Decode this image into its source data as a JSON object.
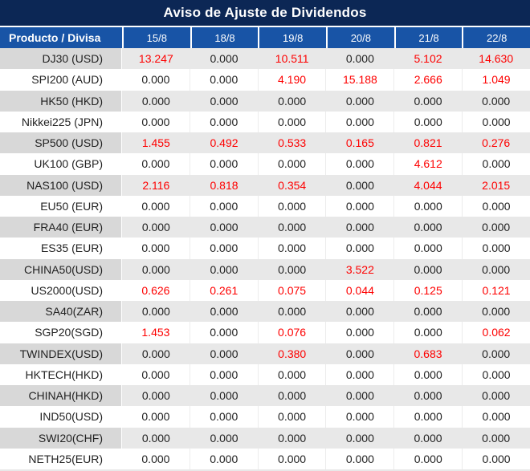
{
  "title": "Aviso de Ajuste de Dividendos",
  "colors": {
    "title_bar_navy": "#0c2755",
    "header_blue": "#1854a6",
    "stripe_gray": "#e8e8e8",
    "label_gray": "#d8d8d8",
    "value_red": "#fe0000",
    "text_dark": "#222222"
  },
  "table": {
    "header": [
      "Producto / Divisa",
      "15/8",
      "18/8",
      "19/8",
      "20/8",
      "21/8",
      "22/8"
    ],
    "rows": [
      {
        "label": "DJ30 (USD)",
        "values": [
          "13.247",
          "0.000",
          "10.511",
          "0.000",
          "5.102",
          "14.630"
        ],
        "red": [
          true,
          false,
          true,
          false,
          true,
          true
        ]
      },
      {
        "label": "SPI200 (AUD)",
        "values": [
          "0.000",
          "0.000",
          "4.190",
          "15.188",
          "2.666",
          "1.049"
        ],
        "red": [
          false,
          false,
          true,
          true,
          true,
          true
        ]
      },
      {
        "label": "HK50 (HKD)",
        "values": [
          "0.000",
          "0.000",
          "0.000",
          "0.000",
          "0.000",
          "0.000"
        ],
        "red": [
          false,
          false,
          false,
          false,
          false,
          false
        ]
      },
      {
        "label": "Nikkei225 (JPN)",
        "values": [
          "0.000",
          "0.000",
          "0.000",
          "0.000",
          "0.000",
          "0.000"
        ],
        "red": [
          false,
          false,
          false,
          false,
          false,
          false
        ]
      },
      {
        "label": "SP500 (USD)",
        "values": [
          "1.455",
          "0.492",
          "0.533",
          "0.165",
          "0.821",
          "0.276"
        ],
        "red": [
          true,
          true,
          true,
          true,
          true,
          true
        ]
      },
      {
        "label": "UK100 (GBP)",
        "values": [
          "0.000",
          "0.000",
          "0.000",
          "0.000",
          "4.612",
          "0.000"
        ],
        "red": [
          false,
          false,
          false,
          false,
          true,
          false
        ]
      },
      {
        "label": "NAS100 (USD)",
        "values": [
          "2.116",
          "0.818",
          "0.354",
          "0.000",
          "4.044",
          "2.015"
        ],
        "red": [
          true,
          true,
          true,
          false,
          true,
          true
        ]
      },
      {
        "label": "EU50 (EUR)",
        "values": [
          "0.000",
          "0.000",
          "0.000",
          "0.000",
          "0.000",
          "0.000"
        ],
        "red": [
          false,
          false,
          false,
          false,
          false,
          false
        ]
      },
      {
        "label": "FRA40 (EUR)",
        "values": [
          "0.000",
          "0.000",
          "0.000",
          "0.000",
          "0.000",
          "0.000"
        ],
        "red": [
          false,
          false,
          false,
          false,
          false,
          false
        ]
      },
      {
        "label": "ES35 (EUR)",
        "values": [
          "0.000",
          "0.000",
          "0.000",
          "0.000",
          "0.000",
          "0.000"
        ],
        "red": [
          false,
          false,
          false,
          false,
          false,
          false
        ]
      },
      {
        "label": "CHINA50(USD)",
        "values": [
          "0.000",
          "0.000",
          "0.000",
          "3.522",
          "0.000",
          "0.000"
        ],
        "red": [
          false,
          false,
          false,
          true,
          false,
          false
        ]
      },
      {
        "label": "US2000(USD)",
        "values": [
          "0.626",
          "0.261",
          "0.075",
          "0.044",
          "0.125",
          "0.121"
        ],
        "red": [
          true,
          true,
          true,
          true,
          true,
          true
        ]
      },
      {
        "label": "SA40(ZAR)",
        "values": [
          "0.000",
          "0.000",
          "0.000",
          "0.000",
          "0.000",
          "0.000"
        ],
        "red": [
          false,
          false,
          false,
          false,
          false,
          false
        ]
      },
      {
        "label": "SGP20(SGD)",
        "values": [
          "1.453",
          "0.000",
          "0.076",
          "0.000",
          "0.000",
          "0.062"
        ],
        "red": [
          true,
          false,
          true,
          false,
          false,
          true
        ]
      },
      {
        "label": "TWINDEX(USD)",
        "values": [
          "0.000",
          "0.000",
          "0.380",
          "0.000",
          "0.683",
          "0.000"
        ],
        "red": [
          false,
          false,
          true,
          false,
          true,
          false
        ]
      },
      {
        "label": "HKTECH(HKD)",
        "values": [
          "0.000",
          "0.000",
          "0.000",
          "0.000",
          "0.000",
          "0.000"
        ],
        "red": [
          false,
          false,
          false,
          false,
          false,
          false
        ]
      },
      {
        "label": "CHINAH(HKD)",
        "values": [
          "0.000",
          "0.000",
          "0.000",
          "0.000",
          "0.000",
          "0.000"
        ],
        "red": [
          false,
          false,
          false,
          false,
          false,
          false
        ]
      },
      {
        "label": "IND50(USD)",
        "values": [
          "0.000",
          "0.000",
          "0.000",
          "0.000",
          "0.000",
          "0.000"
        ],
        "red": [
          false,
          false,
          false,
          false,
          false,
          false
        ]
      },
      {
        "label": "SWI20(CHF)",
        "values": [
          "0.000",
          "0.000",
          "0.000",
          "0.000",
          "0.000",
          "0.000"
        ],
        "red": [
          false,
          false,
          false,
          false,
          false,
          false
        ]
      },
      {
        "label": "NETH25(EUR)",
        "values": [
          "0.000",
          "0.000",
          "0.000",
          "0.000",
          "0.000",
          "0.000"
        ],
        "red": [
          false,
          false,
          false,
          false,
          false,
          false
        ]
      }
    ]
  }
}
